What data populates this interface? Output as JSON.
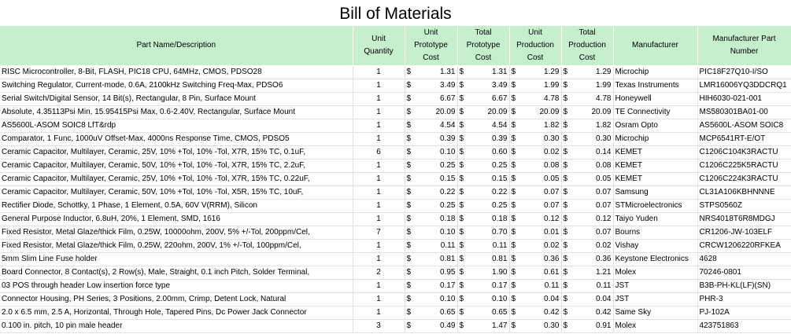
{
  "title": "Bill of Materials",
  "headers": {
    "name": "Part Name/Description",
    "qty": [
      "Unit",
      "Quantity"
    ],
    "unit_proto": [
      "Unit",
      "Prototype",
      "Cost"
    ],
    "total_proto": [
      "Total",
      "Prototype",
      "Cost"
    ],
    "unit_prod": [
      "Unit",
      "Production",
      "Cost"
    ],
    "total_prod": [
      "Total",
      "Production",
      "Cost"
    ],
    "mfr": "Manufacturer",
    "mpn": [
      "Manufacturer Part",
      "Number"
    ]
  },
  "currency_symbol": "$",
  "rows": [
    {
      "name": "RISC Microcontroller, 8-Bit, FLASH, PIC18 CPU, 64MHz, CMOS, PDSO28",
      "qty": "1",
      "unit_proto": "1.31",
      "total_proto": "1.31",
      "unit_prod": "1.29",
      "total_prod": "1.29",
      "mfr": "Microchip",
      "mpn": "PIC18F27Q10-I/SO"
    },
    {
      "name": "Switching Regulator, Current-mode, 0.6A, 2100kHz Switching Freq-Max, PDSO6",
      "qty": "1",
      "unit_proto": "3.49",
      "total_proto": "3.49",
      "unit_prod": "1.99",
      "total_prod": "1.99",
      "mfr": "Texas Instruments",
      "mpn": "LMR16006YQ3DDCRQ1"
    },
    {
      "name": "Serial Switch/Digital Sensor, 14 Bit(s), Rectangular, 8 Pin, Surface Mount",
      "qty": "1",
      "unit_proto": "6.67",
      "total_proto": "6.67",
      "unit_prod": "4.78",
      "total_prod": "4.78",
      "mfr": "Honeywell",
      "mpn": "HIH6030-021-001"
    },
    {
      "name": "Absolute, 4.35113Psi Min, 15.95415Psi Max, 0.6-2.40V, Rectangular, Surface Mount",
      "qty": "1",
      "unit_proto": "20.09",
      "total_proto": "20.09",
      "unit_prod": "20.09",
      "total_prod": "20.09",
      "mfr": "TE Connectivity",
      "mpn": "MS580301BA01-00"
    },
    {
      "name": "AS5600L-ASOM SOIC8 LfT&rdp",
      "qty": "1",
      "unit_proto": "4.54",
      "total_proto": "4.54",
      "unit_prod": "1.82",
      "total_prod": "1.82",
      "mfr": "Osram Opto",
      "mpn": "AS5600L-ASOM SOIC8"
    },
    {
      "name": "Comparator, 1 Func, 1000uV Offset-Max, 4000ns Response Time, CMOS, PDSO5",
      "qty": "1",
      "unit_proto": "0.39",
      "total_proto": "0.39",
      "unit_prod": "0.30",
      "total_prod": "0.30",
      "mfr": "Microchip",
      "mpn": "MCP6541RT-E/OT"
    },
    {
      "name": "Ceramic Capacitor, Multilayer, Ceramic, 25V, 10% +Tol, 10% -Tol, X7R, 15% TC, 0.1uF,",
      "qty": "6",
      "unit_proto": "0.10",
      "total_proto": "0.60",
      "unit_prod": "0.02",
      "total_prod": "0.14",
      "mfr": "KEMET",
      "mpn": "C1206C104K3RACTU"
    },
    {
      "name": "Ceramic Capacitor, Multilayer, Ceramic, 50V, 10% +Tol, 10% -Tol, X7R, 15% TC, 2.2uF,",
      "qty": "1",
      "unit_proto": "0.25",
      "total_proto": "0.25",
      "unit_prod": "0.08",
      "total_prod": "0.08",
      "mfr": "KEMET",
      "mpn": "C1206C225K5RACTU"
    },
    {
      "name": "Ceramic Capacitor, Multilayer, Ceramic, 25V, 10% +Tol, 10% -Tol, X7R, 15% TC, 0.22uF,",
      "qty": "1",
      "unit_proto": "0.15",
      "total_proto": "0.15",
      "unit_prod": "0.05",
      "total_prod": "0.05",
      "mfr": "KEMET",
      "mpn": "C1206C224K3RACTU"
    },
    {
      "name": "Ceramic Capacitor, Multilayer, Ceramic, 50V, 10% +Tol, 10% -Tol, X5R, 15% TC, 10uF,",
      "qty": "1",
      "unit_proto": "0.22",
      "total_proto": "0.22",
      "unit_prod": "0.07",
      "total_prod": "0.07",
      "mfr": "Samsung",
      "mpn": "CL31A106KBHNNNE"
    },
    {
      "name": "Rectifier Diode, Schottky, 1 Phase, 1 Element, 0.5A, 60V V(RRM), Silicon",
      "qty": "1",
      "unit_proto": "0.25",
      "total_proto": "0.25",
      "unit_prod": "0.07",
      "total_prod": "0.07",
      "mfr": "STMicroelectronics",
      "mpn": "STPS0560Z"
    },
    {
      "name": "General Purpose Inductor, 6.8uH, 20%, 1 Element, SMD, 1616",
      "qty": "1",
      "unit_proto": "0.18",
      "total_proto": "0.18",
      "unit_prod": "0.12",
      "total_prod": "0.12",
      "mfr": "Taiyo Yuden",
      "mpn": "NRS4018T6R8MDGJ"
    },
    {
      "name": "Fixed Resistor, Metal Glaze/thick Film, 0.25W, 10000ohm, 200V, 5% +/-Tol, 200ppm/Cel,",
      "qty": "7",
      "unit_proto": "0.10",
      "total_proto": "0.70",
      "unit_prod": "0.01",
      "total_prod": "0.07",
      "mfr": "Bourns",
      "mpn": "CR1206-JW-103ELF"
    },
    {
      "name": "Fixed Resistor, Metal Glaze/thick Film, 0.25W, 220ohm, 200V, 1% +/-Tol, 100ppm/Cel,",
      "qty": "1",
      "unit_proto": "0.11",
      "total_proto": "0.11",
      "unit_prod": "0.02",
      "total_prod": "0.02",
      "mfr": "Vishay",
      "mpn": "CRCW1206220RFKEA"
    },
    {
      "name": "5mm Slim Line Fuse holder",
      "qty": "1",
      "unit_proto": "0.81",
      "total_proto": "0.81",
      "unit_prod": "0.36",
      "total_prod": "0.36",
      "mfr": "Keystone Electronics",
      "mpn": "4628"
    },
    {
      "name": "Board Connector, 8 Contact(s), 2 Row(s), Male, Straight, 0.1 inch Pitch, Solder Terminal,",
      "qty": "2",
      "unit_proto": "0.95",
      "total_proto": "1.90",
      "unit_prod": "0.61",
      "total_prod": "1.21",
      "mfr": "Molex",
      "mpn": "70246-0801"
    },
    {
      "name": "03 POS through header Low insertion force type",
      "qty": "1",
      "unit_proto": "0.17",
      "total_proto": "0.17",
      "unit_prod": "0.11",
      "total_prod": "0.11",
      "mfr": "JST",
      "mpn": "B3B-PH-KL(LF)(SN)"
    },
    {
      "name": "Connector Housing, PH Series, 3 Positions, 2.00mm, Crimp, Detent Lock, Natural",
      "qty": "1",
      "unit_proto": "0.10",
      "total_proto": "0.10",
      "unit_prod": "0.04",
      "total_prod": "0.04",
      "mfr": "JST",
      "mpn": "PHR-3"
    },
    {
      "name": "2.0 x 6.5 mm, 2.5 A, Horizontal, Through Hole, Tapered Pins, Dc Power Jack Connector",
      "qty": "1",
      "unit_proto": "0.65",
      "total_proto": "0.65",
      "unit_prod": "0.42",
      "total_prod": "0.42",
      "mfr": "Same Sky",
      "mpn": "PJ-102A"
    },
    {
      "name": "0.100 in. pitch, 10 pin male header",
      "qty": "3",
      "unit_proto": "0.49",
      "total_proto": "1.47",
      "unit_prod": "0.30",
      "total_prod": "0.91",
      "mfr": "Molex",
      "mpn": "423751863"
    }
  ]
}
